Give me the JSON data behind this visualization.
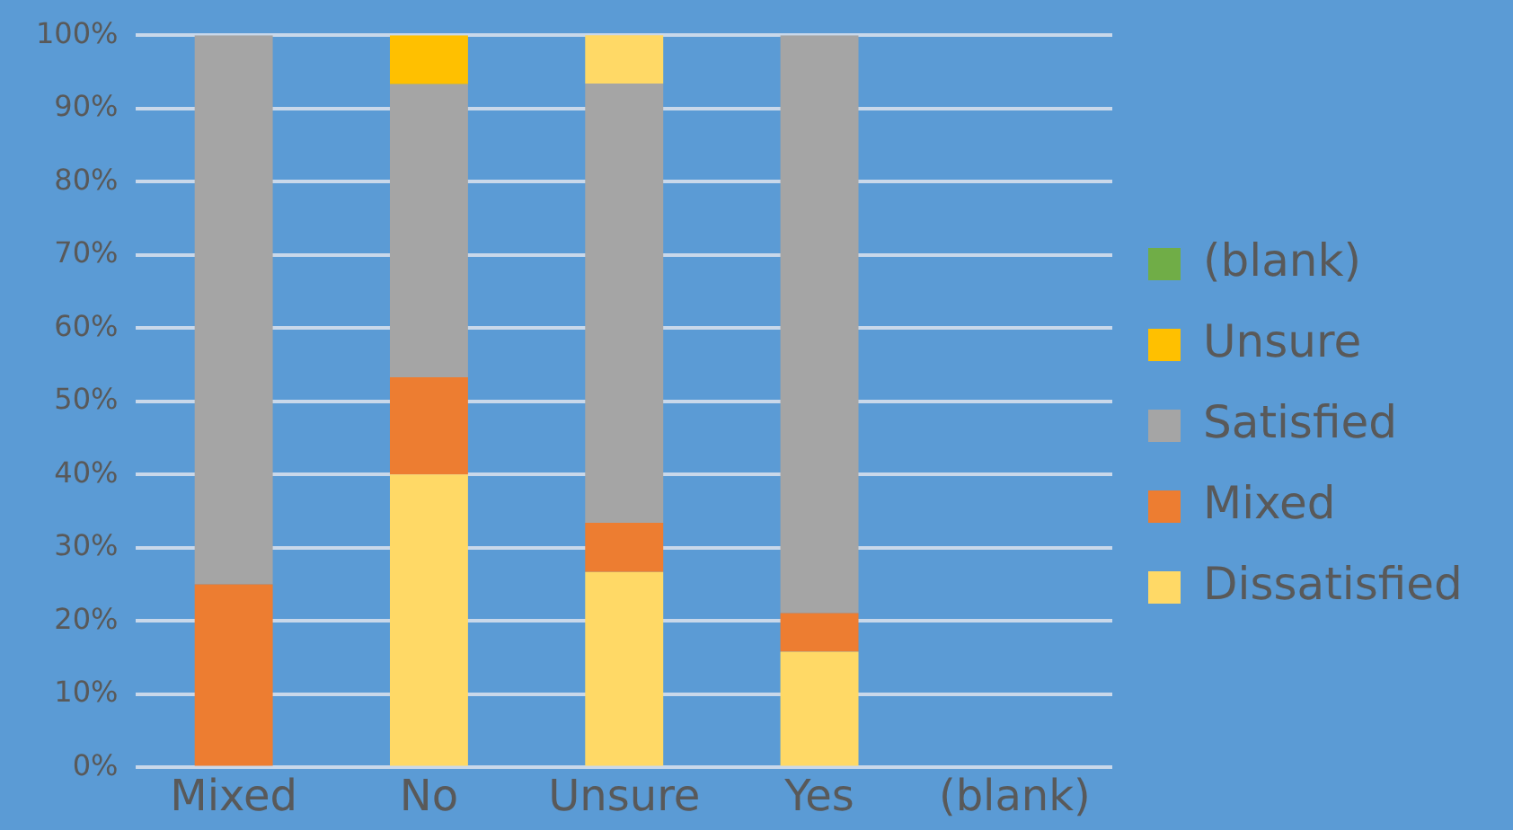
{
  "chart_data": {
    "type": "bar",
    "stacked": true,
    "categories": [
      "Mixed",
      "No",
      "Unsure",
      "Yes",
      "(blank)"
    ],
    "series": [
      {
        "name": "Dissatisfied",
        "color": "#ffd966",
        "values": [
          0,
          40,
          26.7,
          15.8,
          null
        ]
      },
      {
        "name": "Mixed",
        "color": "#ed7d31",
        "values": [
          25,
          13.3,
          6.7,
          5.3,
          null
        ]
      },
      {
        "name": "Satisfied",
        "color": "#a5a5a5",
        "values": [
          75,
          40,
          60,
          78.9,
          null
        ]
      },
      {
        "name": "Unsure",
        "color": "#ffc000",
        "colors": [
          "#ffc000",
          "#ffc000",
          "#ffd966",
          "#ffc000",
          "#ffc000"
        ],
        "values": [
          0,
          6.7,
          6.7,
          0,
          null
        ]
      },
      {
        "name": "(blank)",
        "color": "#70ad47",
        "values": [
          null,
          null,
          null,
          null,
          null
        ]
      }
    ],
    "ylim": [
      0,
      100
    ],
    "yticks": [
      {
        "value": 0,
        "label": "0%"
      },
      {
        "value": 10,
        "label": "10%"
      },
      {
        "value": 20,
        "label": "20%"
      },
      {
        "value": 30,
        "label": "30%"
      },
      {
        "value": 40,
        "label": "40%"
      },
      {
        "value": 50,
        "label": "50%"
      },
      {
        "value": 60,
        "label": "60%"
      },
      {
        "value": 70,
        "label": "70%"
      },
      {
        "value": 80,
        "label": "80%"
      },
      {
        "value": 90,
        "label": "90%"
      },
      {
        "value": 100,
        "label": "100%"
      }
    ],
    "grid": "y",
    "legend": "right"
  }
}
